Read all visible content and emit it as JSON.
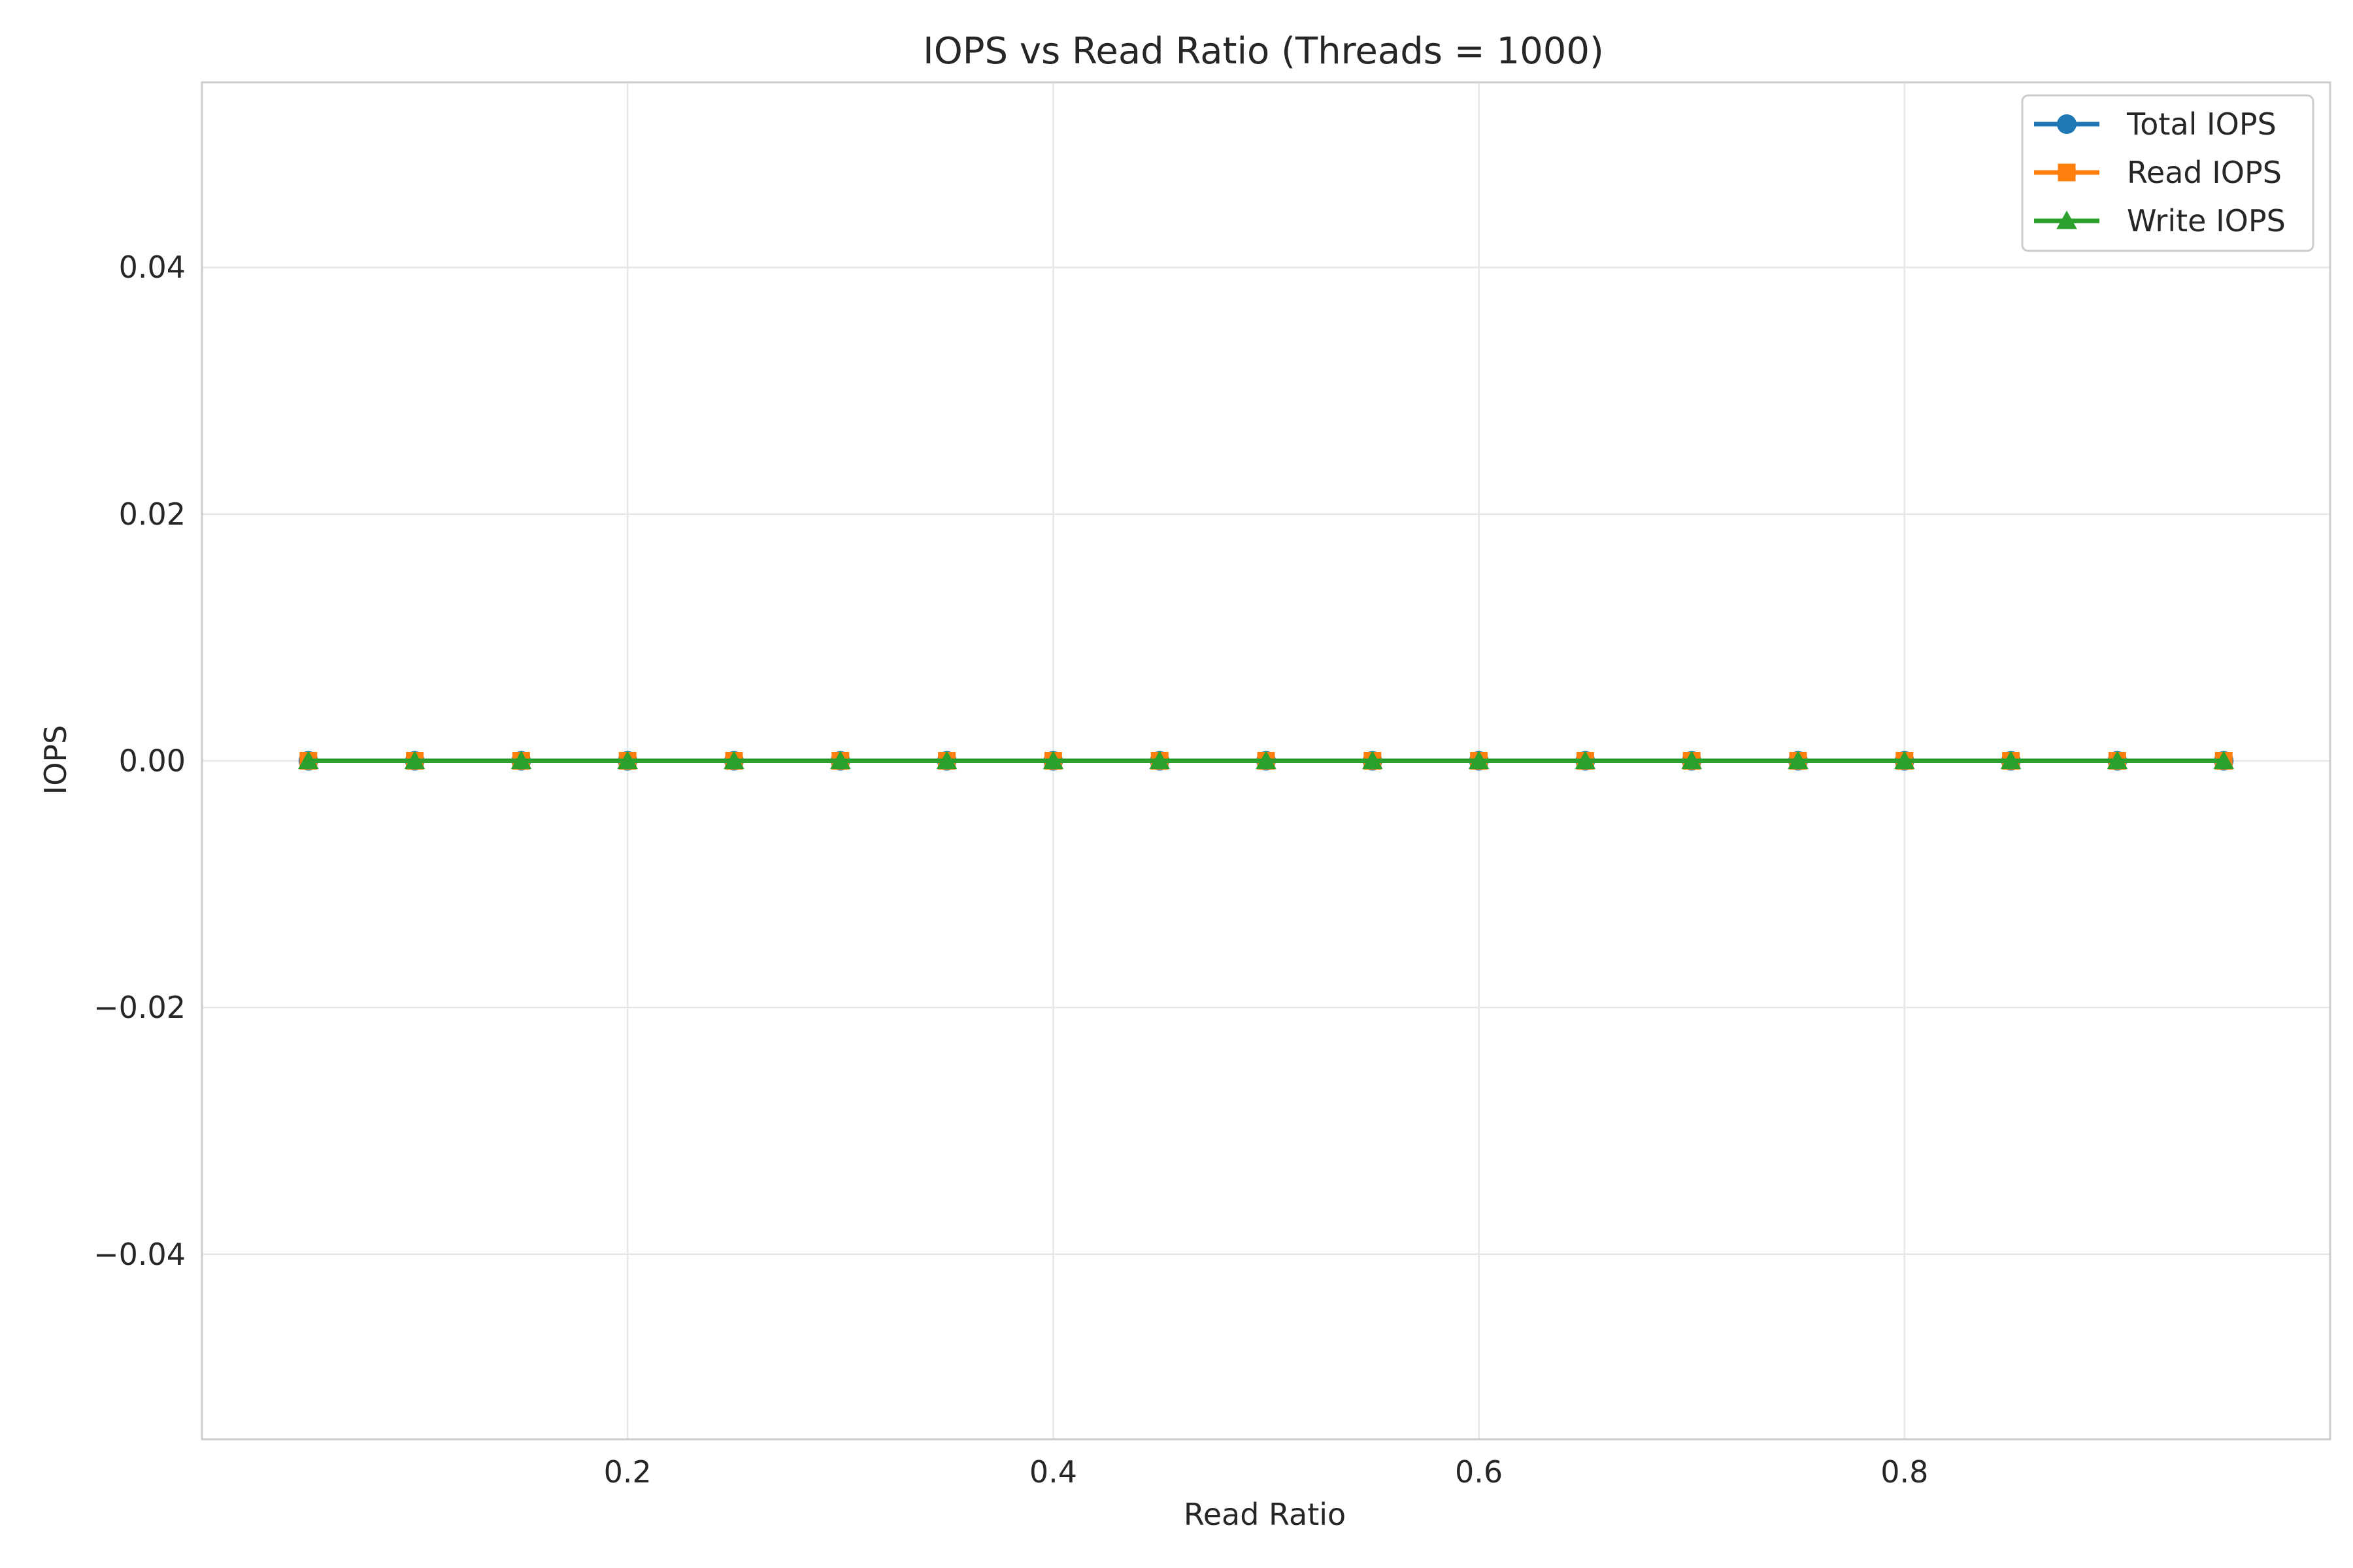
{
  "chart_data": {
    "type": "line",
    "title": "IOPS vs Read Ratio (Threads = 1000)",
    "xlabel": "Read Ratio",
    "ylabel": "IOPS",
    "xlim": [
      0.0,
      1.0
    ],
    "ylim": [
      -0.055,
      0.055
    ],
    "xticks": [
      0.2,
      0.4,
      0.6,
      0.8
    ],
    "xtick_labels": [
      "0.2",
      "0.4",
      "0.6",
      "0.8"
    ],
    "yticks": [
      0.04,
      0.02,
      0.0,
      -0.02,
      -0.04
    ],
    "ytick_labels": [
      "0.04",
      "0.02",
      "0.00",
      "−0.02",
      "−0.04"
    ],
    "grid": true,
    "legend_position": "top-right",
    "x": [
      0.05,
      0.1,
      0.15,
      0.2,
      0.25,
      0.3,
      0.35,
      0.4,
      0.45,
      0.5,
      0.55,
      0.6,
      0.65,
      0.7,
      0.75,
      0.8,
      0.85,
      0.9,
      0.95
    ],
    "series": [
      {
        "name": "Total IOPS",
        "color": "#1f77b4",
        "marker": "circle",
        "values": [
          0,
          0,
          0,
          0,
          0,
          0,
          0,
          0,
          0,
          0,
          0,
          0,
          0,
          0,
          0,
          0,
          0,
          0,
          0
        ]
      },
      {
        "name": "Read IOPS",
        "color": "#ff7f0e",
        "marker": "square",
        "values": [
          0,
          0,
          0,
          0,
          0,
          0,
          0,
          0,
          0,
          0,
          0,
          0,
          0,
          0,
          0,
          0,
          0,
          0,
          0
        ]
      },
      {
        "name": "Write IOPS",
        "color": "#2ca02c",
        "marker": "triangle",
        "values": [
          0,
          0,
          0,
          0,
          0,
          0,
          0,
          0,
          0,
          0,
          0,
          0,
          0,
          0,
          0,
          0,
          0,
          0,
          0
        ]
      }
    ]
  }
}
